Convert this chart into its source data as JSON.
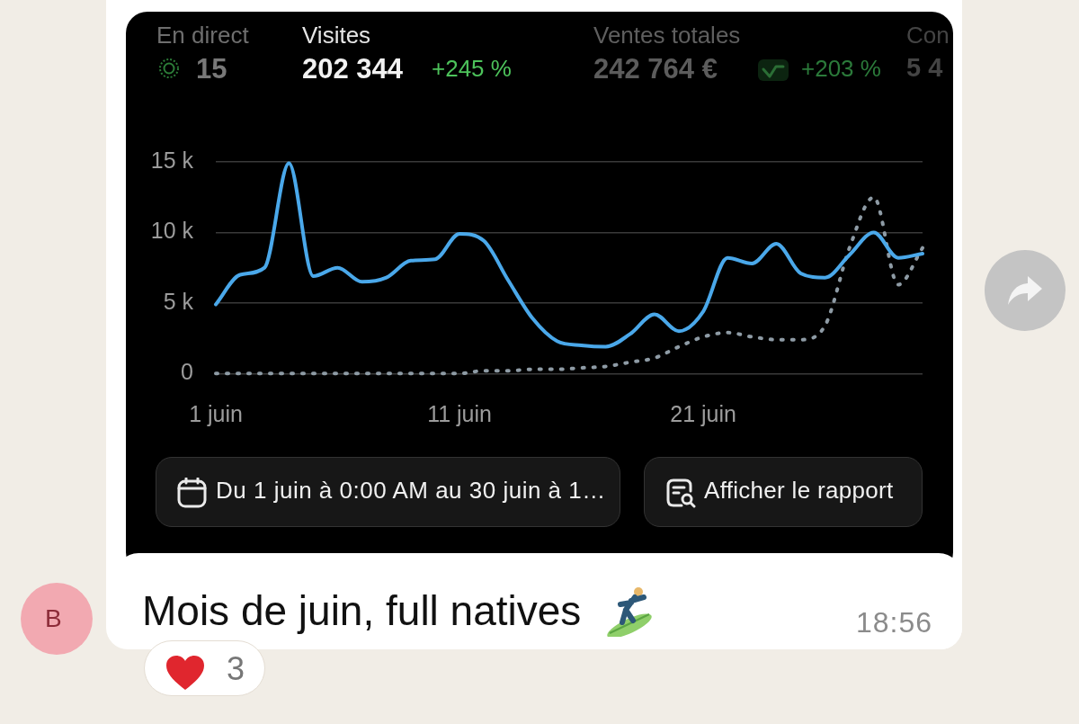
{
  "chart_data": {
    "type": "line",
    "title": "Visites",
    "x": [
      "--06-01",
      "--06-02",
      "--06-03",
      "--06-04",
      "--06-05",
      "--06-06",
      "--06-07",
      "--06-08",
      "--06-09",
      "--06-10",
      "--06-11",
      "--06-12",
      "--06-13",
      "--06-14",
      "--06-15",
      "--06-16",
      "--06-17",
      "--06-18",
      "--06-19",
      "--06-20",
      "--06-21",
      "--06-22",
      "--06-23",
      "--06-24",
      "--06-25",
      "--06-26",
      "--06-27",
      "--06-28",
      "--06-29",
      "--06-30"
    ],
    "series": [
      {
        "color": "#4aa8ea",
        "line_style": "solid",
        "values": [
          4900,
          7000,
          7500,
          14900,
          6900,
          7500,
          6500,
          6800,
          8000,
          8100,
          9900,
          9400,
          6600,
          3900,
          2300,
          2000,
          1900,
          2800,
          4200,
          3000,
          4400,
          8200,
          7800,
          9200,
          7100,
          6800,
          8400,
          10000,
          8200,
          8500
        ]
      },
      {
        "color": "#8e9ba5",
        "line_style": "dotted",
        "values": [
          0,
          0,
          0,
          0,
          0,
          0,
          0,
          0,
          0,
          0,
          0,
          200,
          200,
          300,
          300,
          400,
          500,
          800,
          1100,
          1900,
          2600,
          2900,
          2600,
          2400,
          2400,
          3400,
          8900,
          12500,
          6300,
          8900
        ]
      }
    ],
    "xlim": [
      "--06-01",
      "--06-30"
    ],
    "xticks": [
      {
        "value": "--06-01",
        "label": "1 juin"
      },
      {
        "value": "--06-11",
        "label": "11 juin"
      },
      {
        "value": "--06-21",
        "label": "21 juin"
      }
    ],
    "ylim": [
      0,
      15000
    ],
    "yticks": [
      0,
      {
        "value": 5000,
        "label": "5 k"
      },
      {
        "value": 10000,
        "label": "10 k"
      },
      {
        "value": 15000,
        "label": "15 k"
      }
    ],
    "grid": "y",
    "marker": "none",
    "annotations": [
      "En direct",
      "15",
      "202 344",
      "+245 %",
      "Ventes totales",
      "242 764 €",
      "+203 %",
      "Con",
      "5 4",
      "Du 1 juin à 0:00 AM au 30 juin à 1…",
      "Afficher le rapport",
      "Mois de juin, full natives",
      "18:56",
      "3",
      "B"
    ]
  }
}
